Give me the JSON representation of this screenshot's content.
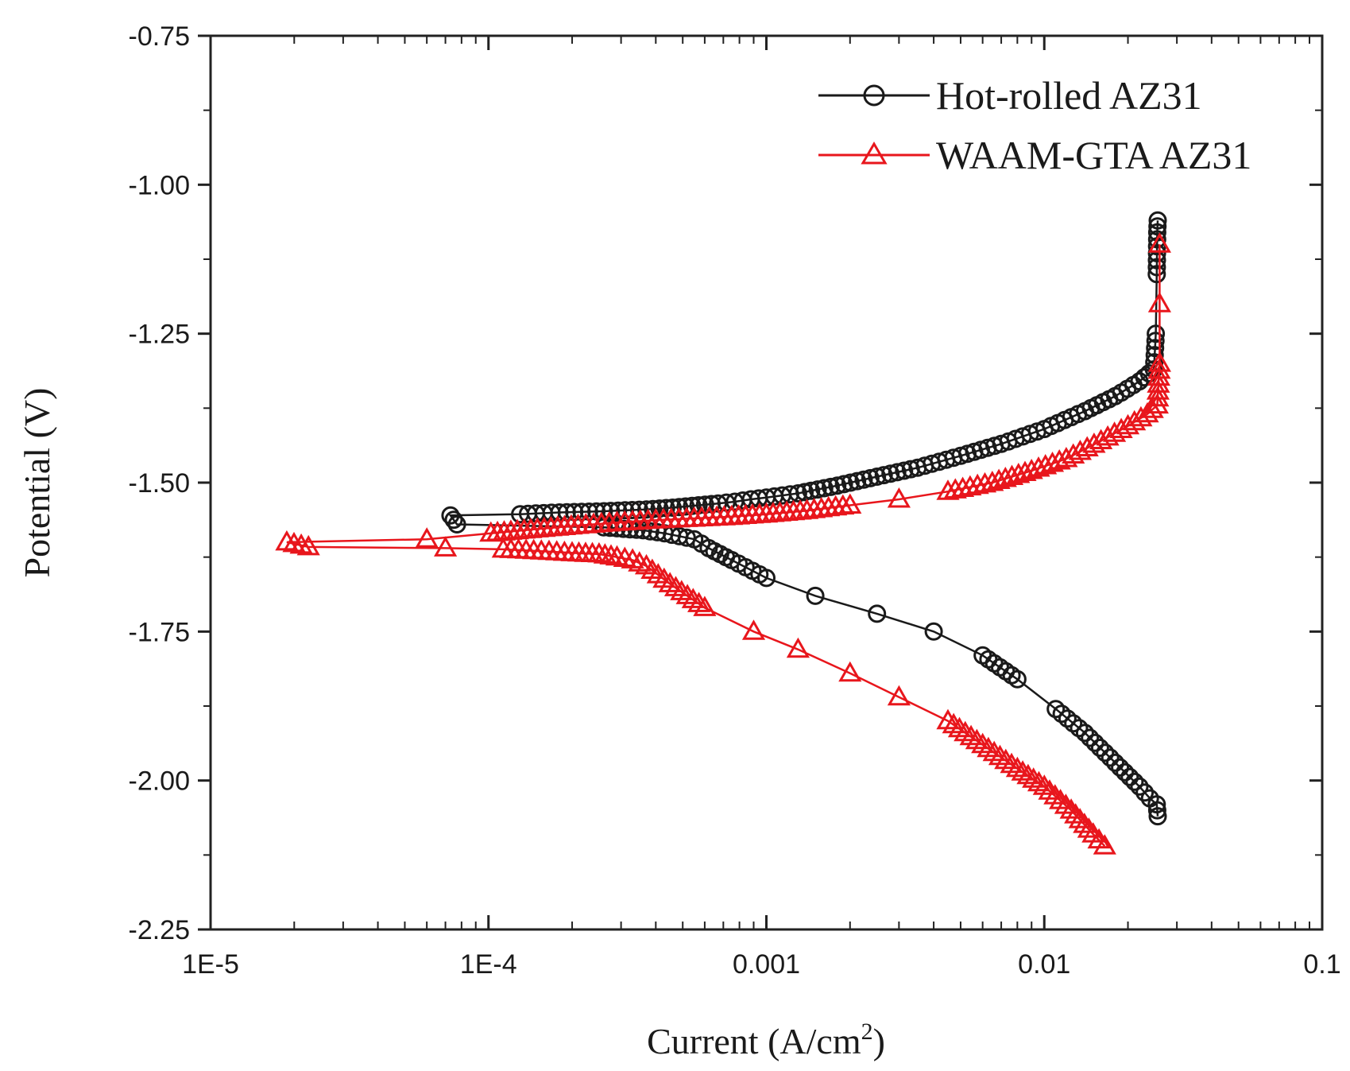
{
  "chart_data": {
    "type": "scatter",
    "title": "",
    "xlabel": "Current (A/cm",
    "xlabel_superscript": "2",
    "xlabel_suffix": ")",
    "ylabel": "Potential (V)",
    "xscale": "log",
    "xlim": [
      1e-05,
      0.1
    ],
    "ylim": [
      -2.25,
      -0.75
    ],
    "xticks": [
      {
        "value": 1e-05,
        "label": "1E-5"
      },
      {
        "value": 0.0001,
        "label": "1E-4"
      },
      {
        "value": 0.001,
        "label": "0.001"
      },
      {
        "value": 0.01,
        "label": "0.01"
      },
      {
        "value": 0.1,
        "label": "0.1"
      }
    ],
    "yticks": [
      {
        "value": -0.75,
        "label": "-0.75"
      },
      {
        "value": -1.0,
        "label": "-1.00"
      },
      {
        "value": -1.25,
        "label": "-1.25"
      },
      {
        "value": -1.5,
        "label": "-1.50"
      },
      {
        "value": -1.75,
        "label": "-1.75"
      },
      {
        "value": -2.0,
        "label": "-2.00"
      },
      {
        "value": -2.25,
        "label": "-2.25"
      }
    ],
    "legend_position": "top-right",
    "series": [
      {
        "name": "Hot-rolled AZ31",
        "color": "#1a1a1a",
        "marker": "circle",
        "points": [
          [
            0.0256,
            -2.06
          ],
          [
            0.0254,
            -2.04
          ],
          [
            0.024,
            -2.03
          ],
          [
            0.022,
            -2.01
          ],
          [
            0.018,
            -1.97
          ],
          [
            0.014,
            -1.92
          ],
          [
            0.011,
            -1.88
          ],
          [
            0.008,
            -1.83
          ],
          [
            0.006,
            -1.79
          ],
          [
            0.004,
            -1.75
          ],
          [
            0.0025,
            -1.72
          ],
          [
            0.0015,
            -1.69
          ],
          [
            0.001,
            -1.66
          ],
          [
            0.00075,
            -1.63
          ],
          [
            0.00062,
            -1.61
          ],
          [
            0.00055,
            -1.595
          ],
          [
            0.00043,
            -1.585
          ],
          [
            0.00036,
            -1.58
          ],
          [
            0.00026,
            -1.575
          ],
          [
            7.7e-05,
            -1.57
          ],
          [
            7.3e-05,
            -1.555
          ],
          [
            0.00013,
            -1.553
          ],
          [
            0.00018,
            -1.55
          ],
          [
            0.00026,
            -1.548
          ],
          [
            0.00037,
            -1.545
          ],
          [
            0.00046,
            -1.542
          ],
          [
            0.00057,
            -1.538
          ],
          [
            0.00067,
            -1.535
          ],
          [
            0.00077,
            -1.532
          ],
          [
            0.00088,
            -1.528
          ],
          [
            0.001,
            -1.525
          ],
          [
            0.0013,
            -1.518
          ],
          [
            0.0018,
            -1.505
          ],
          [
            0.0025,
            -1.49
          ],
          [
            0.0035,
            -1.475
          ],
          [
            0.005,
            -1.455
          ],
          [
            0.007,
            -1.435
          ],
          [
            0.01,
            -1.41
          ],
          [
            0.014,
            -1.38
          ],
          [
            0.018,
            -1.355
          ],
          [
            0.022,
            -1.33
          ],
          [
            0.0248,
            -1.31
          ],
          [
            0.0252,
            -1.25
          ],
          [
            0.0254,
            -1.15
          ],
          [
            0.0255,
            -1.08
          ],
          [
            0.0256,
            -1.06
          ]
        ]
      },
      {
        "name": "WAAM-GTA AZ31",
        "color": "#e8161c",
        "marker": "triangle",
        "points": [
          [
            0.0165,
            -2.11
          ],
          [
            0.015,
            -2.09
          ],
          [
            0.0125,
            -2.05
          ],
          [
            0.01,
            -2.01
          ],
          [
            0.008,
            -1.98
          ],
          [
            0.006,
            -1.94
          ],
          [
            0.0045,
            -1.9
          ],
          [
            0.003,
            -1.86
          ],
          [
            0.002,
            -1.82
          ],
          [
            0.0013,
            -1.78
          ],
          [
            0.0009,
            -1.75
          ],
          [
            0.0006,
            -1.71
          ],
          [
            0.00045,
            -1.67
          ],
          [
            0.00037,
            -1.64
          ],
          [
            0.00033,
            -1.63
          ],
          [
            0.00029,
            -1.625
          ],
          [
            0.00025,
            -1.62
          ],
          [
            0.0002,
            -1.618
          ],
          [
            0.000155,
            -1.615
          ],
          [
            0.000113,
            -1.612
          ],
          [
            7e-05,
            -1.61
          ],
          [
            2.25e-05,
            -1.608
          ],
          [
            1.88e-05,
            -1.6
          ],
          [
            6e-05,
            -1.595
          ],
          [
            0.000102,
            -1.585
          ],
          [
            0.00015,
            -1.578
          ],
          [
            0.00021,
            -1.572
          ],
          [
            0.00029,
            -1.567
          ],
          [
            0.0004,
            -1.563
          ],
          [
            0.00055,
            -1.56
          ],
          [
            0.00075,
            -1.557
          ],
          [
            0.001,
            -1.553
          ],
          [
            0.0014,
            -1.547
          ],
          [
            0.002,
            -1.538
          ],
          [
            0.003,
            -1.528
          ],
          [
            0.0045,
            -1.515
          ],
          [
            0.0065,
            -1.5
          ],
          [
            0.009,
            -1.48
          ],
          [
            0.012,
            -1.46
          ],
          [
            0.016,
            -1.43
          ],
          [
            0.02,
            -1.405
          ],
          [
            0.0235,
            -1.385
          ],
          [
            0.0255,
            -1.37
          ],
          [
            0.026,
            -1.3
          ],
          [
            0.026,
            -1.2
          ],
          [
            0.026,
            -1.1
          ]
        ]
      }
    ]
  }
}
